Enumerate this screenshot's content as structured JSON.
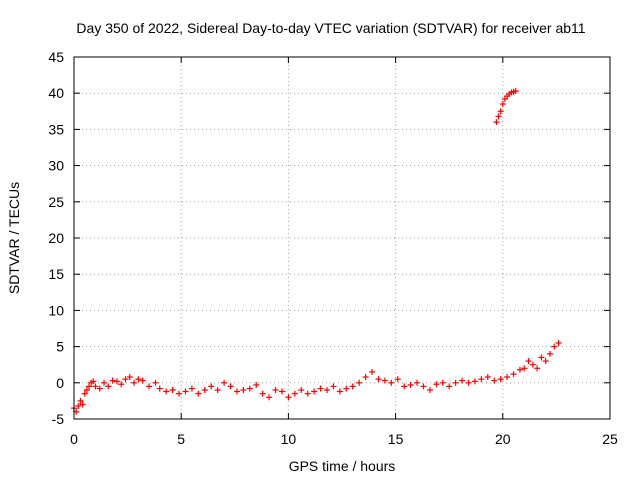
{
  "chart_data": {
    "type": "scatter",
    "title": "Day 350 of 2022, Sidereal Day-to-day VTEC variation (SDTVAR) for receiver ab11",
    "xlabel": "GPS time / hours",
    "ylabel": "SDTVAR / TECUs",
    "xlim": [
      0,
      25
    ],
    "ylim": [
      -5,
      45
    ],
    "xticks": [
      0,
      5,
      10,
      15,
      20,
      25
    ],
    "yticks": [
      -5,
      0,
      5,
      10,
      15,
      20,
      25,
      30,
      35,
      40,
      45
    ],
    "xtick_labels": [
      "0",
      "5",
      "10",
      "15",
      "20",
      "25"
    ],
    "ytick_labels": [
      "-5",
      "0",
      "5",
      "10",
      "15",
      "20",
      "25",
      "30",
      "35",
      "40",
      "45"
    ],
    "grid": true,
    "marker": "plus",
    "color": "#ff0000",
    "series": [
      {
        "name": "SDTVAR",
        "x": [
          0.0,
          0.1,
          0.2,
          0.3,
          0.4,
          0.5,
          0.6,
          0.7,
          0.8,
          0.9,
          1.0,
          1.2,
          1.4,
          1.6,
          1.8,
          2.0,
          2.2,
          2.4,
          2.6,
          2.8,
          3.0,
          3.2,
          3.5,
          3.8,
          4.0,
          4.3,
          4.6,
          4.9,
          5.2,
          5.5,
          5.8,
          6.1,
          6.4,
          6.7,
          7.0,
          7.3,
          7.6,
          7.9,
          8.2,
          8.5,
          8.8,
          9.1,
          9.4,
          9.7,
          10.0,
          10.3,
          10.6,
          10.9,
          11.2,
          11.5,
          11.8,
          12.1,
          12.4,
          12.7,
          13.0,
          13.3,
          13.6,
          13.9,
          14.2,
          14.5,
          14.8,
          15.1,
          15.4,
          15.7,
          16.0,
          16.3,
          16.6,
          16.9,
          17.2,
          17.5,
          17.8,
          18.1,
          18.4,
          18.7,
          19.0,
          19.3,
          19.6,
          19.9,
          20.2,
          20.5,
          20.8,
          21.0,
          21.2,
          21.4,
          21.6,
          21.8,
          22.0,
          22.2,
          22.4,
          22.6,
          19.7,
          19.8,
          19.9,
          20.0,
          20.1,
          20.2,
          20.3,
          20.4,
          20.5,
          20.6
        ],
        "y": [
          -3.5,
          -4.0,
          -3.2,
          -2.5,
          -3.0,
          -1.5,
          -1.0,
          -0.5,
          0.0,
          0.2,
          -0.5,
          -0.8,
          0.0,
          -0.5,
          0.3,
          0.2,
          -0.2,
          0.5,
          0.8,
          0.0,
          0.5,
          0.3,
          -0.5,
          0.0,
          -0.8,
          -1.2,
          -1.0,
          -1.5,
          -1.2,
          -0.8,
          -1.5,
          -1.0,
          -0.5,
          -1.0,
          0.0,
          -0.5,
          -1.2,
          -1.0,
          -0.8,
          -0.3,
          -1.5,
          -2.0,
          -1.0,
          -1.2,
          -2.0,
          -1.5,
          -1.0,
          -1.5,
          -1.2,
          -0.8,
          -1.0,
          -0.5,
          -1.2,
          -0.8,
          -0.5,
          0.0,
          0.8,
          1.5,
          0.5,
          0.3,
          0.0,
          0.5,
          -0.5,
          -0.3,
          0.0,
          -0.5,
          -1.0,
          -0.2,
          0.0,
          -0.5,
          0.0,
          0.3,
          0.0,
          0.2,
          0.5,
          0.8,
          0.3,
          0.5,
          0.8,
          1.2,
          1.8,
          2.0,
          3.0,
          2.5,
          2.0,
          3.5,
          3.0,
          4.0,
          5.0,
          5.5,
          36.0,
          36.8,
          37.5,
          38.5,
          39.2,
          39.6,
          39.9,
          40.1,
          40.2,
          40.3
        ]
      }
    ]
  }
}
